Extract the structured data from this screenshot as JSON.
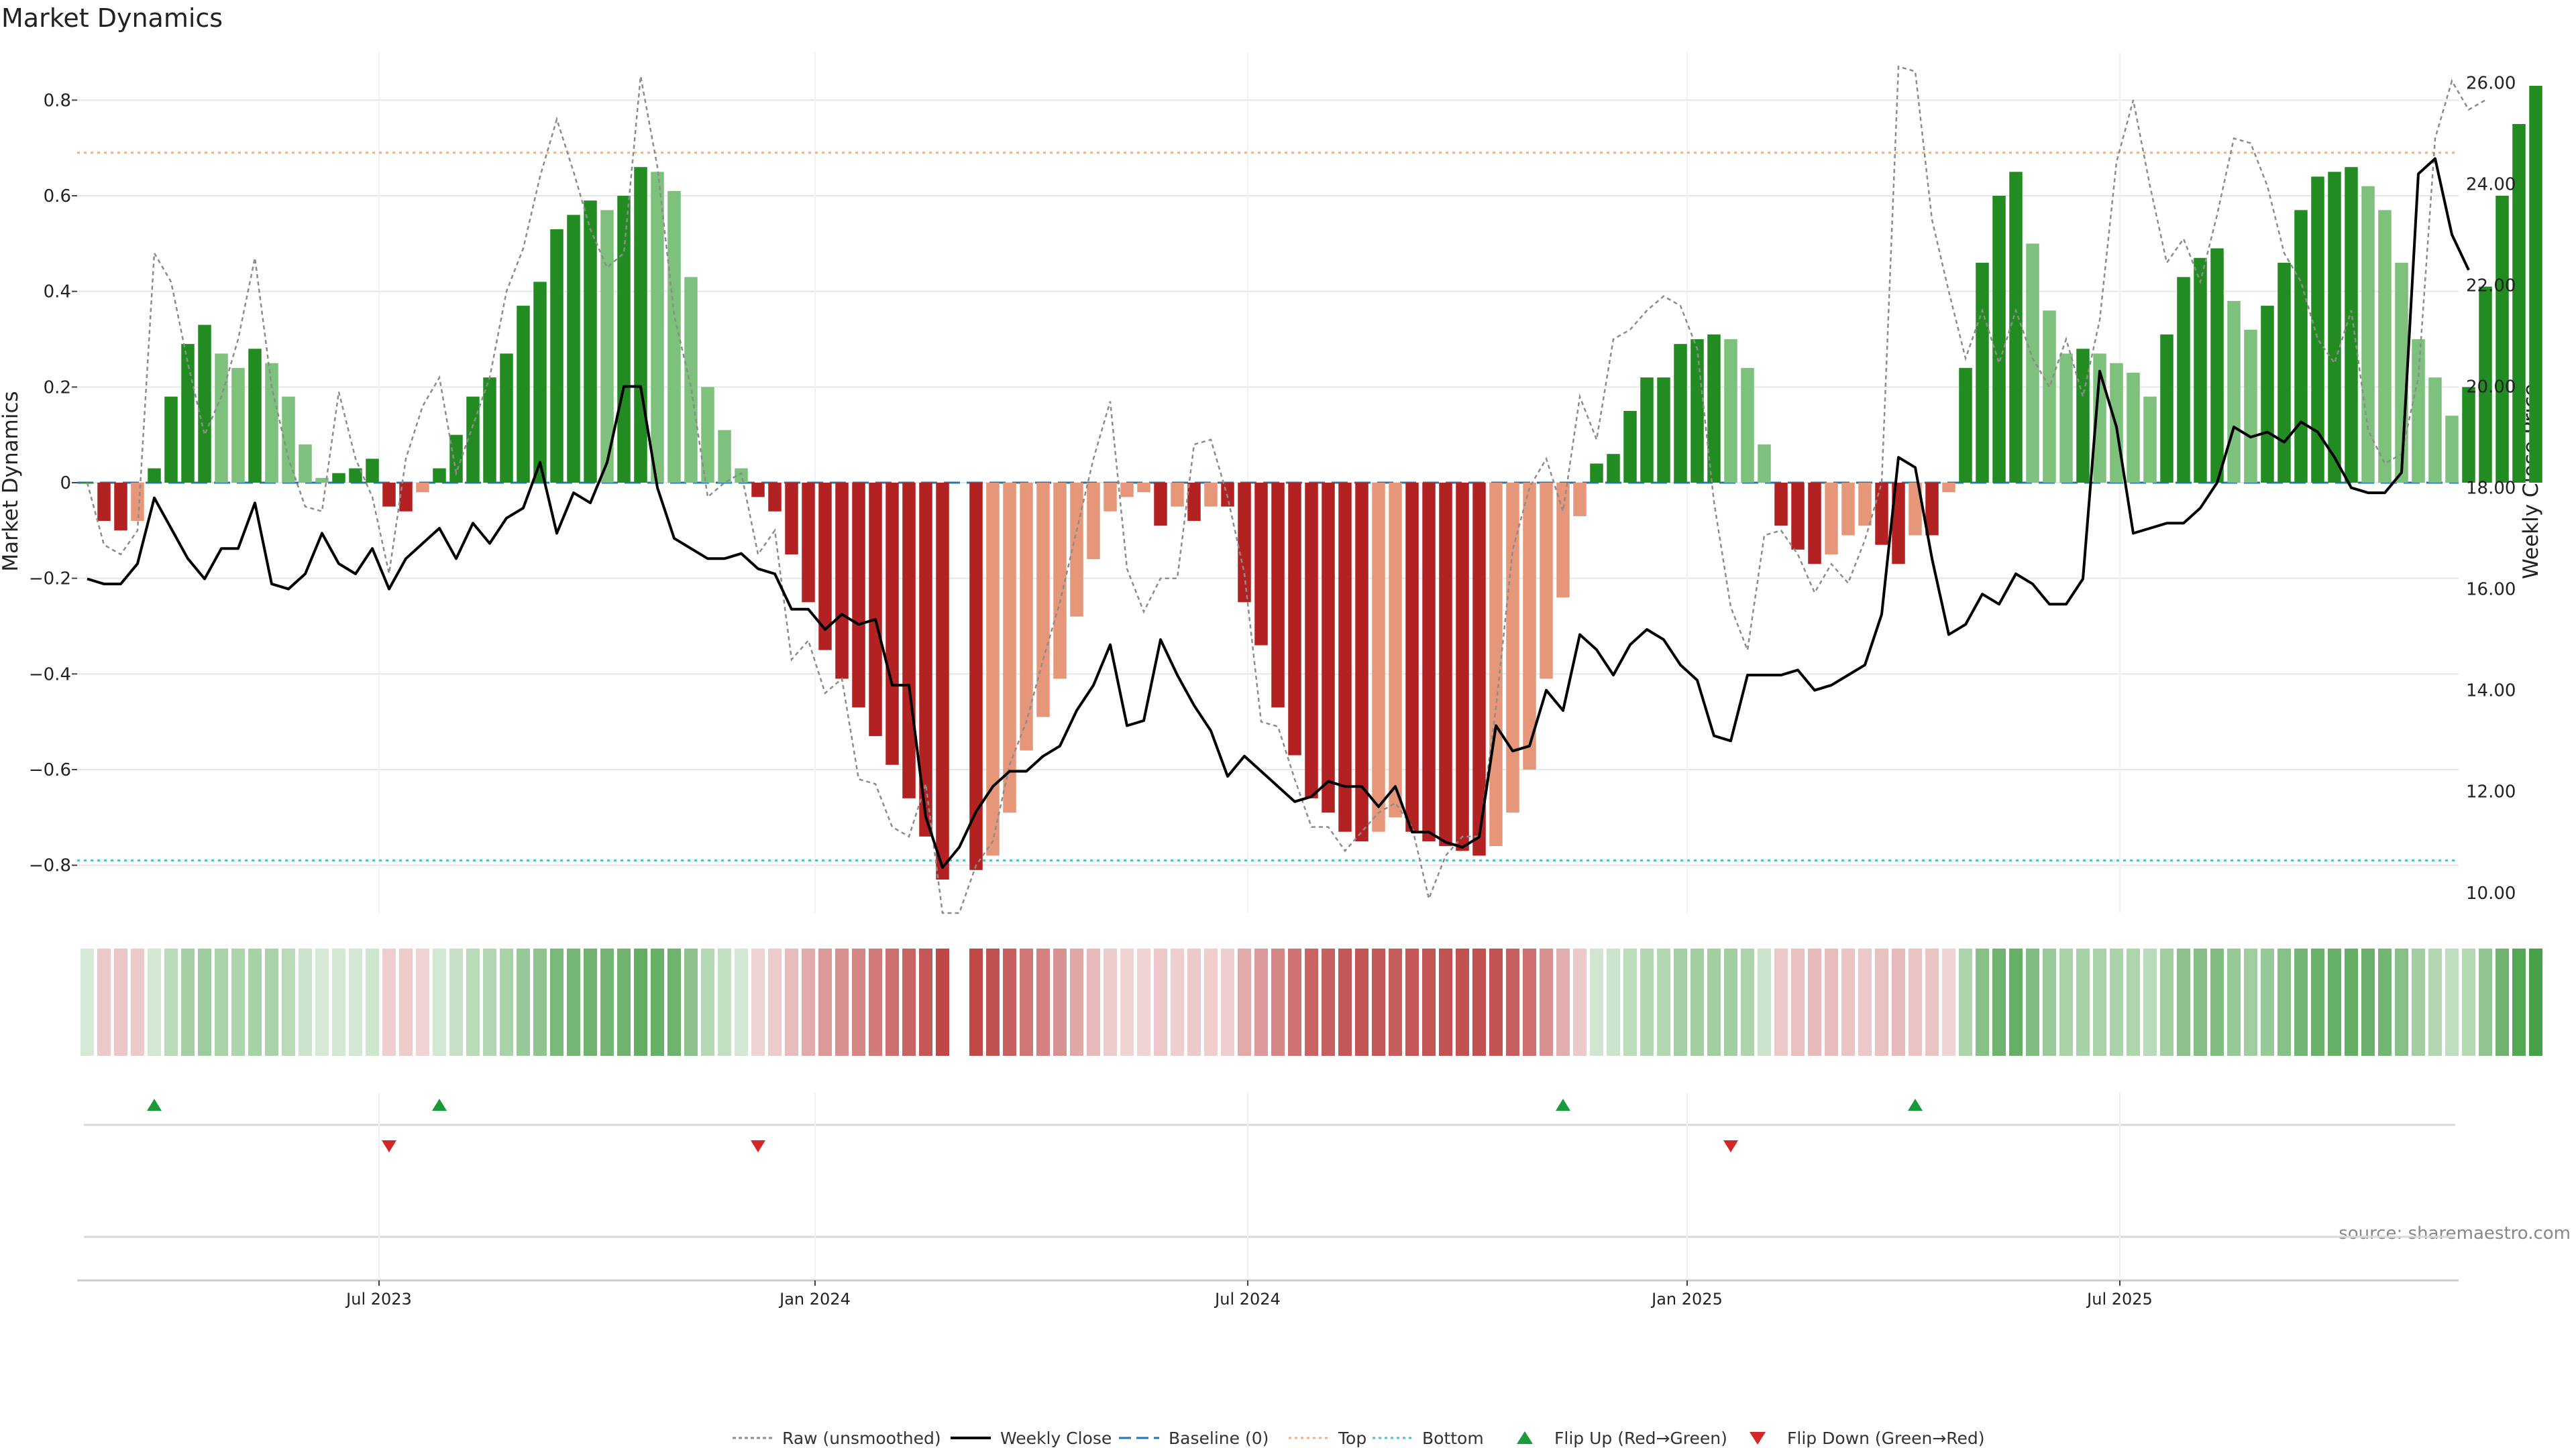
{
  "chart_data": {
    "type": "bar",
    "title": "Market Dynamics",
    "ylabel": "Market Dynamics",
    "y2label": "Weekly Close Price",
    "ylim": [
      -0.9,
      0.9
    ],
    "y2lim": [
      9.6,
      26.6
    ],
    "yticks": [
      -0.8,
      -0.6,
      -0.4,
      -0.2,
      0,
      0.2,
      0.4,
      0.6,
      0.8
    ],
    "y2ticks": [
      10,
      12,
      14,
      16,
      18,
      20,
      22,
      24,
      26
    ],
    "ytick_labels": [
      "−0.8",
      "−0.6",
      "−0.4",
      "−0.2",
      "0",
      "0.2",
      "0.4",
      "0.6",
      "0.8"
    ],
    "y2tick_labels": [
      "10.00",
      "12.00",
      "14.00",
      "16.00",
      "18.00",
      "20.00",
      "22.00",
      "24.00",
      "26.00"
    ],
    "top_level": 0.69,
    "bottom_level": -0.79,
    "baseline": 0,
    "x_start": "2023-03-03",
    "x_ticks": [
      {
        "label": "Jul 2023",
        "week": 17.4
      },
      {
        "label": "Jan 2024",
        "week": 43.4
      },
      {
        "label": "Jul 2024",
        "week": 69.2
      },
      {
        "label": "Jan 2025",
        "week": 95.4
      },
      {
        "label": "Jul 2025",
        "week": 121.2
      }
    ],
    "smoothed": [
      0,
      -0.08,
      -0.1,
      -0.08,
      0.03,
      0.18,
      0.29,
      0.33,
      0.27,
      0.24,
      0.28,
      0.25,
      0.18,
      0.08,
      0.01,
      0.02,
      0.03,
      0.05,
      -0.05,
      -0.06,
      -0.02,
      0.03,
      0.1,
      0.18,
      0.22,
      0.27,
      0.37,
      0.42,
      0.53,
      0.56,
      0.59,
      0.57,
      0.6,
      0.66,
      0.65,
      0.61,
      0.43,
      0.2,
      0.11,
      0.03,
      -0.03,
      -0.06,
      -0.15,
      -0.25,
      -0.35,
      -0.41,
      -0.47,
      -0.53,
      -0.59,
      -0.66,
      -0.74,
      -0.83,
      null,
      -0.81,
      -0.78,
      -0.69,
      -0.56,
      -0.49,
      -0.41,
      -0.28,
      -0.16,
      -0.06,
      -0.03,
      -0.02,
      -0.09,
      -0.05,
      -0.08,
      -0.05,
      -0.05,
      -0.25,
      -0.34,
      -0.47,
      -0.57,
      -0.66,
      -0.69,
      -0.73,
      -0.75,
      -0.73,
      -0.7,
      -0.73,
      -0.75,
      -0.76,
      -0.77,
      -0.78,
      -0.76,
      -0.69,
      -0.6,
      -0.41,
      -0.24,
      -0.07,
      0.04,
      0.06,
      0.15,
      0.22,
      0.22,
      0.29,
      0.3,
      0.31,
      0.3,
      0.24,
      0.08,
      -0.09,
      -0.14,
      -0.17,
      -0.15,
      -0.11,
      -0.09,
      -0.13,
      -0.17,
      -0.11,
      -0.11,
      -0.02,
      0.24,
      0.46,
      0.6,
      0.65,
      0.5,
      0.36,
      0.27,
      0.28,
      0.27,
      0.25,
      0.23,
      0.18,
      0.31,
      0.43,
      0.47,
      0.49,
      0.38,
      0.32,
      0.37,
      0.46,
      0.57,
      0.64,
      0.65,
      0.66,
      0.62,
      0.57,
      0.46,
      0.3,
      0.22,
      0.14,
      0.2,
      0.41,
      0.6,
      0.75,
      0.83
    ],
    "raw": [
      0.0,
      -0.13,
      -0.15,
      -0.1,
      0.48,
      0.42,
      0.25,
      0.1,
      0.18,
      0.3,
      0.47,
      0.2,
      0.05,
      -0.05,
      -0.06,
      0.19,
      0.05,
      -0.03,
      -0.19,
      0.05,
      0.16,
      0.22,
      0.02,
      0.12,
      0.22,
      0.4,
      0.49,
      0.64,
      0.76,
      0.65,
      0.53,
      0.45,
      0.48,
      0.85,
      0.66,
      0.35,
      0.2,
      -0.03,
      0.0,
      0.02,
      -0.15,
      -0.1,
      -0.37,
      -0.33,
      -0.44,
      -0.41,
      -0.62,
      -0.63,
      -0.72,
      -0.74,
      -0.63,
      -0.9,
      -0.92,
      -0.8,
      -0.75,
      -0.59,
      -0.5,
      -0.37,
      -0.25,
      -0.1,
      0.05,
      0.17,
      -0.18,
      -0.27,
      -0.2,
      -0.2,
      0.08,
      0.09,
      -0.03,
      -0.19,
      -0.5,
      -0.51,
      -0.62,
      -0.72,
      -0.72,
      -0.77,
      -0.73,
      -0.69,
      -0.67,
      -0.72,
      -0.87,
      -0.78,
      -0.74,
      -0.74,
      -0.47,
      -0.14,
      -0.01,
      0.05,
      -0.06,
      0.18,
      0.09,
      0.3,
      0.32,
      0.36,
      0.39,
      0.37,
      0.28,
      -0.04,
      -0.26,
      -0.35,
      -0.11,
      -0.1,
      -0.15,
      -0.23,
      -0.17,
      -0.21,
      -0.12,
      0.0,
      0.87,
      0.86,
      0.55,
      0.4,
      0.26,
      0.36,
      0.25,
      0.36,
      0.26,
      0.2,
      0.3,
      0.18,
      0.34,
      0.67,
      0.8,
      0.62,
      0.46,
      0.51,
      0.42,
      0.56,
      0.72,
      0.71,
      0.62,
      0.48,
      0.42,
      0.3,
      0.25,
      0.36,
      0.11,
      0.04,
      0.06,
      0.22,
      0.72,
      0.84,
      0.78,
      0.8
    ],
    "close": [
      16.2,
      16.1,
      16.1,
      16.5,
      17.8,
      17.2,
      16.6,
      16.2,
      16.8,
      16.8,
      17.7,
      16.1,
      16.0,
      16.3,
      17.1,
      16.5,
      16.3,
      16.8,
      16.0,
      16.6,
      16.9,
      17.2,
      16.6,
      17.3,
      16.9,
      17.4,
      17.6,
      18.5,
      17.1,
      17.9,
      17.7,
      18.5,
      20.0,
      20.0,
      18.0,
      17.0,
      16.8,
      16.6,
      16.6,
      16.7,
      16.4,
      16.3,
      15.6,
      15.6,
      15.2,
      15.5,
      15.3,
      15.4,
      14.1,
      14.1,
      11.5,
      10.5,
      10.9,
      11.6,
      12.1,
      12.4,
      12.4,
      12.7,
      12.9,
      13.6,
      14.1,
      14.9,
      13.3,
      13.4,
      15.0,
      14.3,
      13.7,
      13.2,
      12.3,
      12.7,
      12.4,
      12.1,
      11.8,
      11.9,
      12.2,
      12.1,
      12.1,
      11.7,
      12.1,
      11.2,
      11.2,
      11.0,
      10.9,
      11.1,
      13.3,
      12.8,
      12.9,
      14.0,
      13.6,
      15.1,
      14.8,
      14.3,
      14.9,
      15.2,
      15.0,
      14.5,
      14.2,
      13.1,
      13.0,
      14.3,
      14.3,
      14.3,
      14.4,
      14.0,
      14.1,
      14.3,
      14.5,
      15.5,
      18.6,
      18.4,
      16.6,
      15.1,
      15.3,
      15.9,
      15.7,
      16.3,
      16.1,
      15.7,
      15.7,
      16.2,
      20.3,
      19.2,
      17.1,
      17.2,
      17.3,
      17.3,
      17.6,
      18.1,
      19.2,
      19.0,
      19.1,
      18.9,
      19.3,
      19.1,
      18.6,
      18.0,
      17.9,
      17.9,
      18.3,
      24.2,
      24.5,
      23.0,
      22.3
    ],
    "flip_up": [
      4,
      21,
      88,
      109
    ],
    "flip_down": [
      18,
      40,
      98
    ],
    "source": "source: sharemaestro.com",
    "legend": [
      {
        "label": "Raw (unsmoothed)",
        "style": "raw"
      },
      {
        "label": "Weekly Close",
        "style": "close"
      },
      {
        "label": "Baseline (0)",
        "style": "baseline"
      },
      {
        "label": "Top",
        "style": "top"
      },
      {
        "label": "Bottom",
        "style": "bottom"
      },
      {
        "label": "Flip Up (Red→Green)",
        "style": "flipup"
      },
      {
        "label": "Flip Down (Green→Red)",
        "style": "flipdown"
      }
    ]
  },
  "colors": {
    "strong_green": "#228b22",
    "weak_green": "#7dc17d",
    "strong_red": "#b22222",
    "weak_red": "#e6977a",
    "close_line": "#000000",
    "raw_line": "#8c8c8c",
    "top_line": "#f0b080",
    "bottom_line": "#4fc0d0",
    "baseline": "#1f77b4",
    "flip_up": "#1a9a3a",
    "flip_down": "#d62728"
  }
}
